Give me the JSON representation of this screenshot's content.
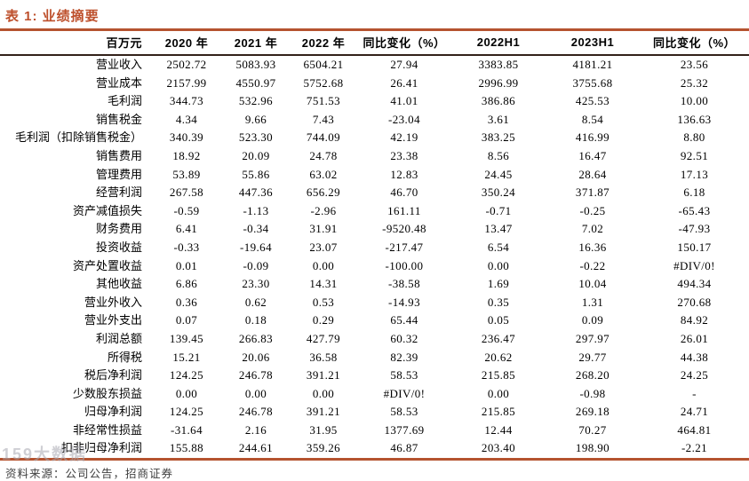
{
  "title": "表 1:  业绩摘要",
  "colors": {
    "accent": "#b5532f",
    "title_text": "#bd4f2b",
    "header_rule": "#33221a"
  },
  "table": {
    "headers": [
      "百万元",
      "2020 年",
      "2021 年",
      "2022 年",
      "同比变化（%）",
      "2022H1",
      "2023H1",
      "同比变化（%）"
    ],
    "rows": [
      {
        "label": "营业收入",
        "values": [
          "2502.72",
          "5083.93",
          "6504.21",
          "27.94",
          "3383.85",
          "4181.21",
          "23.56"
        ]
      },
      {
        "label": "营业成本",
        "values": [
          "2157.99",
          "4550.97",
          "5752.68",
          "26.41",
          "2996.99",
          "3755.68",
          "25.32"
        ]
      },
      {
        "label": "毛利润",
        "values": [
          "344.73",
          "532.96",
          "751.53",
          "41.01",
          "386.86",
          "425.53",
          "10.00"
        ]
      },
      {
        "label": "销售税金",
        "values": [
          "4.34",
          "9.66",
          "7.43",
          "-23.04",
          "3.61",
          "8.54",
          "136.63"
        ]
      },
      {
        "label": "毛利润（扣除销售税金）",
        "values": [
          "340.39",
          "523.30",
          "744.09",
          "42.19",
          "383.25",
          "416.99",
          "8.80"
        ]
      },
      {
        "label": "销售费用",
        "values": [
          "18.92",
          "20.09",
          "24.78",
          "23.38",
          "8.56",
          "16.47",
          "92.51"
        ]
      },
      {
        "label": "管理费用",
        "values": [
          "53.89",
          "55.86",
          "63.02",
          "12.83",
          "24.45",
          "28.64",
          "17.13"
        ]
      },
      {
        "label": "经营利润",
        "values": [
          "267.58",
          "447.36",
          "656.29",
          "46.70",
          "350.24",
          "371.87",
          "6.18"
        ]
      },
      {
        "label": "资产减值损失",
        "values": [
          "-0.59",
          "-1.13",
          "-2.96",
          "161.11",
          "-0.71",
          "-0.25",
          "-65.43"
        ]
      },
      {
        "label": "财务费用",
        "values": [
          "6.41",
          "-0.34",
          "31.91",
          "-9520.48",
          "13.47",
          "7.02",
          "-47.93"
        ]
      },
      {
        "label": "投资收益",
        "values": [
          "-0.33",
          "-19.64",
          "23.07",
          "-217.47",
          "6.54",
          "16.36",
          "150.17"
        ]
      },
      {
        "label": "资产处置收益",
        "values": [
          "0.01",
          "-0.09",
          "0.00",
          "-100.00",
          "0.00",
          "-0.22",
          "#DIV/0!"
        ]
      },
      {
        "label": "其他收益",
        "values": [
          "6.86",
          "23.30",
          "14.31",
          "-38.58",
          "1.69",
          "10.04",
          "494.34"
        ]
      },
      {
        "label": "营业外收入",
        "values": [
          "0.36",
          "0.62",
          "0.53",
          "-14.93",
          "0.35",
          "1.31",
          "270.68"
        ]
      },
      {
        "label": "营业外支出",
        "values": [
          "0.07",
          "0.18",
          "0.29",
          "65.44",
          "0.05",
          "0.09",
          "84.92"
        ]
      },
      {
        "label": "利润总额",
        "values": [
          "139.45",
          "266.83",
          "427.79",
          "60.32",
          "236.47",
          "297.97",
          "26.01"
        ]
      },
      {
        "label": "所得税",
        "values": [
          "15.21",
          "20.06",
          "36.58",
          "82.39",
          "20.62",
          "29.77",
          "44.38"
        ]
      },
      {
        "label": "税后净利润",
        "values": [
          "124.25",
          "246.78",
          "391.21",
          "58.53",
          "215.85",
          "268.20",
          "24.25"
        ]
      },
      {
        "label": "少数股东损益",
        "values": [
          "0.00",
          "0.00",
          "0.00",
          "#DIV/0!",
          "0.00",
          "-0.98",
          "-"
        ]
      },
      {
        "label": "归母净利润",
        "values": [
          "124.25",
          "246.78",
          "391.21",
          "58.53",
          "215.85",
          "269.18",
          "24.71"
        ]
      },
      {
        "label": "非经常性损益",
        "values": [
          "-31.64",
          "2.16",
          "31.95",
          "1377.69",
          "12.44",
          "70.27",
          "464.81"
        ]
      },
      {
        "label": "扣非归母净利润",
        "values": [
          "155.88",
          "244.61",
          "359.26",
          "46.87",
          "203.40",
          "198.90",
          "-2.21"
        ]
      }
    ]
  },
  "footer": {
    "source": "资料来源：公司公告，招商证券"
  },
  "watermark": "159大数据"
}
